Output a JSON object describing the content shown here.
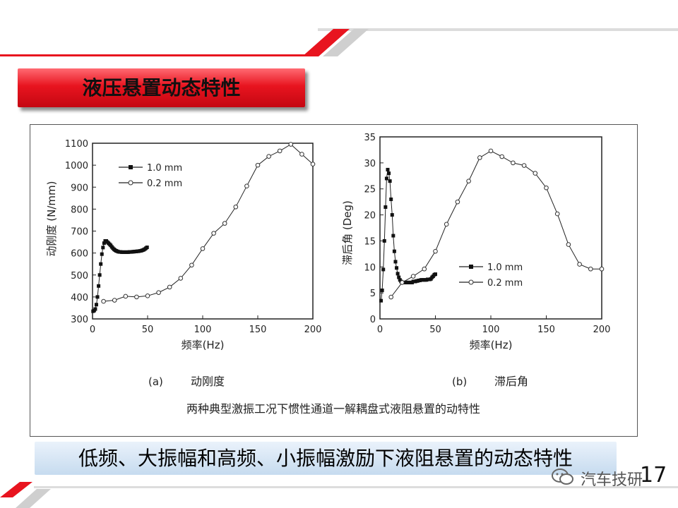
{
  "slide": {
    "title": "液压悬置动态特性",
    "caption": "低频、大振幅和高频、小振幅激励下液阻悬置的动态特性",
    "figure_caption": "两种典型激振工况下惯性通道一解耦盘式液阻悬置的动特性",
    "page_number": "17",
    "watermark": "汽车技研",
    "colors": {
      "accent": "#e8141f",
      "caption_box": "#c6dbef"
    }
  },
  "chart_data": [
    {
      "type": "line",
      "panel_label": "(a)",
      "panel_title": "动刚度",
      "xlabel": "频率(Hz)",
      "ylabel": "动刚度 (N/mm)",
      "xlim": [
        0,
        200
      ],
      "ylim": [
        300,
        1100
      ],
      "xticks": [
        0,
        50,
        100,
        150,
        200
      ],
      "yticks": [
        300,
        400,
        500,
        600,
        700,
        800,
        900,
        1000,
        1100
      ],
      "legend_position": "top-left",
      "series": [
        {
          "name": "1.0 mm",
          "marker": "square-filled",
          "x": [
            0.5,
            1.5,
            2.5,
            3.5,
            4.5,
            5.5,
            6.5,
            7.5,
            8.5,
            9.5,
            10.5,
            11.5,
            12.5,
            13.5,
            14.5,
            15.5,
            16.5,
            17.5,
            18.5,
            19.5,
            20.5,
            21.5,
            22.5,
            23.5,
            24.5,
            25.5,
            26.5,
            27.5,
            28.5,
            29.5,
            30.5,
            31.5,
            32.5,
            33.5,
            34.5,
            35.5,
            36.5,
            37.5,
            38.5,
            39.5,
            40.5,
            41.5,
            42.5,
            43.5,
            44.5,
            45.5,
            46.5,
            47.5,
            48.5,
            49.5
          ],
          "y": [
            335,
            338,
            345,
            365,
            400,
            450,
            500,
            550,
            595,
            625,
            645,
            655,
            655,
            650,
            645,
            640,
            635,
            628,
            622,
            617,
            613,
            610,
            608,
            606,
            605,
            605,
            604,
            604,
            604,
            604,
            604,
            604,
            604,
            605,
            605,
            605,
            606,
            606,
            607,
            607,
            608,
            608,
            609,
            610,
            611,
            613,
            615,
            618,
            622,
            626
          ]
        },
        {
          "name": "0.2 mm",
          "marker": "circle-open",
          "x": [
            10,
            20,
            30,
            40,
            50,
            60,
            70,
            80,
            90,
            100,
            110,
            120,
            130,
            140,
            150,
            160,
            170,
            180,
            190,
            200
          ],
          "y": [
            380,
            385,
            403,
            400,
            405,
            420,
            445,
            485,
            545,
            620,
            690,
            735,
            810,
            905,
            1000,
            1040,
            1065,
            1095,
            1050,
            1005
          ]
        }
      ]
    },
    {
      "type": "line",
      "panel_label": "(b)",
      "panel_title": "滞后角",
      "xlabel": "频率(Hz)",
      "ylabel": "滞后角 (Deg)",
      "xlim": [
        0,
        200
      ],
      "ylim": [
        0,
        35
      ],
      "xticks": [
        0,
        50,
        100,
        150,
        200
      ],
      "yticks": [
        0,
        5,
        10,
        15,
        20,
        25,
        30,
        35
      ],
      "legend_position": "bottom-right",
      "series": [
        {
          "name": "1.0 mm",
          "marker": "square-filled",
          "x": [
            1,
            2,
            3,
            4,
            5,
            6,
            7,
            8,
            9,
            10,
            11,
            12,
            13,
            14,
            15,
            16,
            17,
            18,
            19,
            20,
            21,
            22,
            23,
            24,
            25,
            26,
            27,
            28,
            29,
            30,
            31,
            32,
            33,
            34,
            35,
            36,
            37,
            38,
            39,
            40,
            41,
            42,
            43,
            44,
            45,
            46,
            47,
            48,
            49,
            50
          ],
          "y": [
            3.5,
            5.5,
            9.5,
            15,
            21.5,
            27,
            28.7,
            28,
            26.5,
            23,
            20,
            16,
            13,
            11,
            9.8,
            8.7,
            8,
            7.5,
            7.2,
            7,
            7,
            7,
            7,
            7,
            7,
            7,
            7,
            7,
            7,
            7.2,
            7.2,
            7.2,
            7.3,
            7.3,
            7.4,
            7.4,
            7.5,
            7.5,
            7.5,
            7.5,
            7.5,
            7.5,
            7.6,
            7.6,
            7.6,
            7.7,
            8,
            8.2,
            8.5,
            8.6
          ]
        },
        {
          "name": "0.2 mm",
          "marker": "circle-open",
          "x": [
            10,
            20,
            30,
            40,
            50,
            60,
            70,
            80,
            90,
            100,
            110,
            120,
            130,
            140,
            150,
            160,
            170,
            180,
            190,
            200
          ],
          "y": [
            4.2,
            7,
            8.2,
            9.6,
            13,
            18.2,
            22.5,
            26.5,
            31,
            32.3,
            31.2,
            30,
            29.5,
            28,
            25.2,
            20.2,
            14.3,
            10.5,
            9.6,
            9.6
          ]
        }
      ]
    }
  ]
}
